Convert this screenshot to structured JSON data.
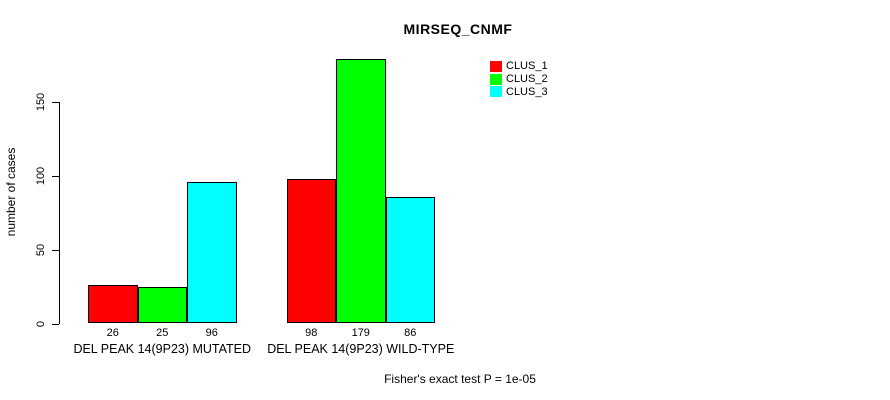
{
  "chart_data": {
    "type": "bar",
    "title": "MIRSEQ_CNMF",
    "ylabel": "number of cases",
    "xlabel": "",
    "categories": [
      "DEL PEAK 14(9P23) MUTATED",
      "DEL PEAK 14(9P23) WILD-TYPE"
    ],
    "series": [
      {
        "name": "CLUS_1",
        "color": "#FF0000",
        "values": [
          26,
          98
        ]
      },
      {
        "name": "CLUS_2",
        "color": "#00FF00",
        "values": [
          25,
          179
        ]
      },
      {
        "name": "CLUS_3",
        "color": "#00FFFF",
        "values": [
          96,
          86
        ]
      }
    ],
    "bar_value_labels": [
      [
        26,
        25,
        96
      ],
      [
        98,
        179,
        86
      ]
    ],
    "yticks": [
      0,
      50,
      100,
      150
    ],
    "ylim": [
      0,
      185
    ],
    "grid": false,
    "legend_position": "right",
    "axis_color": "#000000",
    "background_color": "#FFFFFF"
  },
  "footer": {
    "note": "Fisher's exact test P = 1e-05"
  }
}
